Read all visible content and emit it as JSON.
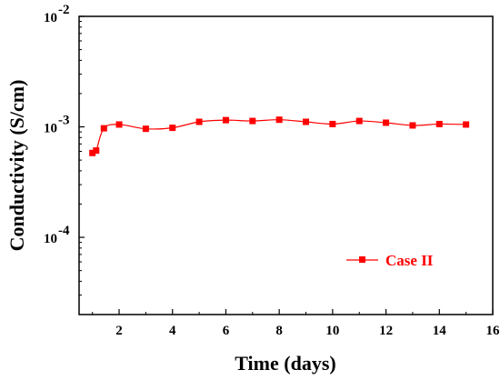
{
  "chart_data": {
    "type": "line",
    "xlabel": "Time (days)",
    "ylabel": "Conductivity (S/cm)",
    "xlim": [
      0.5,
      16
    ],
    "ylim": [
      2e-05,
      0.01
    ],
    "y_scale": "log",
    "grid": false,
    "legend_position": "right",
    "x_ticks": [
      {
        "value": 2,
        "label": "2"
      },
      {
        "value": 4,
        "label": "4"
      },
      {
        "value": 6,
        "label": "6"
      },
      {
        "value": 8,
        "label": "8"
      },
      {
        "value": 10,
        "label": "10"
      },
      {
        "value": 12,
        "label": "12"
      },
      {
        "value": 14,
        "label": "14"
      },
      {
        "value": 16,
        "label": "16"
      }
    ],
    "y_ticks": [
      {
        "value": 0.0001,
        "base": "10",
        "exp": "-4"
      },
      {
        "value": 0.001,
        "base": "10",
        "exp": "-3"
      },
      {
        "value": 0.01,
        "base": "10",
        "exp": "-2"
      }
    ],
    "series": [
      {
        "name": "Case II",
        "color": "#ff0000",
        "marker": "square",
        "x": [
          1,
          1.14,
          1.43,
          2,
          3,
          4,
          5,
          6,
          7,
          8,
          9,
          10,
          11,
          12,
          13,
          14,
          15
        ],
        "y": [
          0.00058,
          0.00061,
          0.00097,
          0.00105,
          0.00096,
          0.00098,
          0.00111,
          0.00115,
          0.00113,
          0.00116,
          0.00111,
          0.00106,
          0.00113,
          0.00109,
          0.00103,
          0.00106,
          0.00105
        ]
      }
    ]
  }
}
